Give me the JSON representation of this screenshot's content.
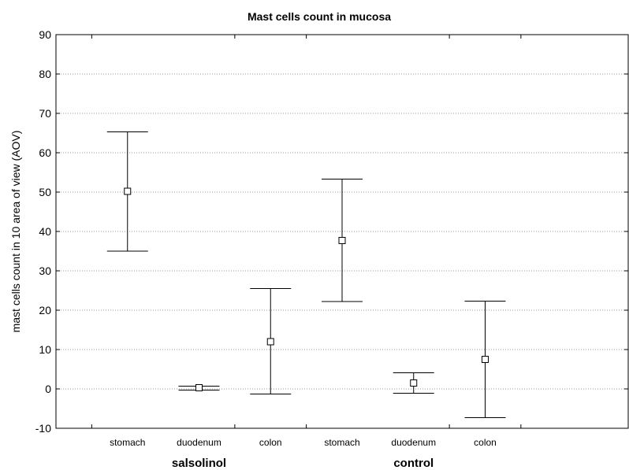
{
  "chart_data": {
    "type": "scatter",
    "title": "Mast cells count in mucosa",
    "ylabel": "mast cells count in 10 area of view (AOV)",
    "xlabel": "",
    "ylim": [
      -10,
      90
    ],
    "yticks": [
      -10,
      0,
      10,
      20,
      30,
      40,
      50,
      60,
      70,
      80,
      90
    ],
    "grid": true,
    "groups": [
      {
        "label": "salsolinol",
        "categories": [
          "stomach",
          "duodenum",
          "colon"
        ]
      },
      {
        "label": "control",
        "categories": [
          "stomach",
          "duodenum",
          "colon"
        ]
      }
    ],
    "points": [
      {
        "group": "salsolinol",
        "category": "stomach",
        "mean": 50.2,
        "lower": 35.0,
        "upper": 65.3
      },
      {
        "group": "salsolinol",
        "category": "duodenum",
        "mean": 0.3,
        "lower": -0.3,
        "upper": 0.7
      },
      {
        "group": "salsolinol",
        "category": "colon",
        "mean": 12.0,
        "lower": -1.3,
        "upper": 25.5
      },
      {
        "group": "control",
        "category": "stomach",
        "mean": 37.7,
        "lower": 22.2,
        "upper": 53.3
      },
      {
        "group": "control",
        "category": "duodenum",
        "mean": 1.5,
        "lower": -1.1,
        "upper": 4.1
      },
      {
        "group": "control",
        "category": "colon",
        "mean": 7.5,
        "lower": -7.3,
        "upper": 22.3
      }
    ]
  }
}
